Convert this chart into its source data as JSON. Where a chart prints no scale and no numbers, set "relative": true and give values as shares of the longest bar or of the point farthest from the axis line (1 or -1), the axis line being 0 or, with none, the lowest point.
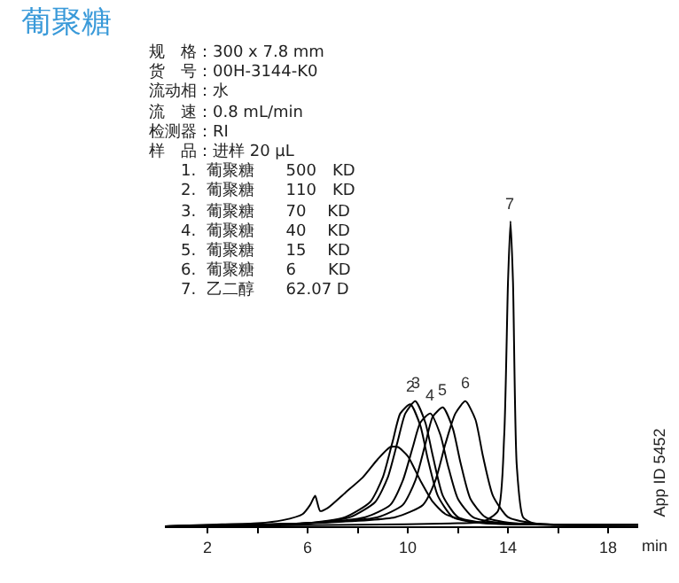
{
  "chart_data": {
    "type": "line",
    "title": "葡聚糖",
    "relative": true,
    "xlabel": "min",
    "xlim": [
      0.3,
      19.2
    ],
    "xticks": [
      2,
      {
        "value": 4,
        "label": null
      },
      6,
      {
        "value": 8,
        "label": null
      },
      10,
      {
        "value": 12,
        "label": null
      },
      14,
      {
        "value": 16,
        "label": null
      },
      18
    ],
    "grid": false,
    "marker": "none",
    "line_style": "solid",
    "series": [
      {
        "color": "#000000",
        "x": [
          0.3,
          2,
          4,
          5,
          5.8,
          6.1,
          6.3,
          6.5,
          6.8,
          7.5,
          8.2,
          8.8,
          9.3,
          9.6,
          10,
          10.5,
          11,
          11.5,
          12.5,
          14,
          16,
          19.2
        ],
        "values": [
          0,
          0.005,
          0.01,
          0.02,
          0.04,
          0.07,
          0.1,
          0.05,
          0.06,
          0.11,
          0.16,
          0.22,
          0.26,
          0.26,
          0.23,
          0.15,
          0.08,
          0.04,
          0.015,
          0.01,
          0.005,
          0.005
        ]
      },
      {
        "color": "#000000",
        "x": [
          0.3,
          6,
          7.5,
          8.5,
          9,
          9.4,
          9.7,
          10.1,
          10.5,
          10.8,
          11.2,
          11.8,
          13,
          16,
          19.2
        ],
        "values": [
          0,
          0.01,
          0.03,
          0.08,
          0.16,
          0.28,
          0.37,
          0.4,
          0.33,
          0.22,
          0.1,
          0.03,
          0.01,
          0.005,
          0.005
        ]
      },
      {
        "color": "#000000",
        "x": [
          0.3,
          6,
          7.7,
          8.7,
          9.2,
          9.6,
          9.9,
          10.3,
          10.7,
          11,
          11.4,
          12,
          13.2,
          16,
          19.2
        ],
        "values": [
          0,
          0.01,
          0.03,
          0.08,
          0.16,
          0.28,
          0.37,
          0.41,
          0.34,
          0.23,
          0.1,
          0.03,
          0.01,
          0.005,
          0.005
        ]
      },
      {
        "color": "#000000",
        "x": [
          0.3,
          6,
          8.3,
          9.3,
          9.8,
          10.2,
          10.5,
          10.9,
          11.3,
          11.6,
          12,
          12.6,
          13.8,
          16,
          19.2
        ],
        "values": [
          0,
          0.01,
          0.03,
          0.07,
          0.15,
          0.26,
          0.34,
          0.37,
          0.3,
          0.2,
          0.09,
          0.03,
          0.01,
          0.005,
          0.005
        ]
      },
      {
        "color": "#000000",
        "x": [
          0.3,
          6,
          8.8,
          9.8,
          10.3,
          10.7,
          11,
          11.4,
          11.8,
          12.1,
          12.5,
          13.1,
          14.2,
          16,
          19.2
        ],
        "values": [
          0,
          0.01,
          0.03,
          0.07,
          0.15,
          0.27,
          0.36,
          0.39,
          0.32,
          0.21,
          0.09,
          0.03,
          0.01,
          0.005,
          0.005
        ]
      },
      {
        "color": "#000000",
        "x": [
          0.3,
          6,
          9.5,
          10.6,
          11.1,
          11.5,
          11.9,
          12.3,
          12.7,
          13,
          13.4,
          14,
          15,
          16,
          19.2
        ],
        "values": [
          0,
          0.01,
          0.03,
          0.07,
          0.15,
          0.27,
          0.37,
          0.41,
          0.35,
          0.23,
          0.1,
          0.03,
          0.01,
          0.005,
          0.005
        ]
      },
      {
        "color": "#000000",
        "x": [
          0.3,
          8,
          12,
          13,
          13.6,
          13.85,
          14,
          14.1,
          14.2,
          14.35,
          14.6,
          15,
          16,
          19.2
        ],
        "values": [
          0,
          0.005,
          0.01,
          0.015,
          0.05,
          0.3,
          0.8,
          1,
          0.8,
          0.2,
          0.03,
          0.01,
          0.005,
          0.005
        ]
      }
    ],
    "annotations": [
      "规　格：300 x 7.8 mm",
      "货　号：00H-3144-K0",
      "流动相：水",
      "流　速：0.8 mL/min",
      "检测器：RI",
      "样　品：进样 20 μL",
      "1.  葡聚糖　　500　KD",
      "2.  葡聚糖　　110　KD",
      "3.  葡聚糖　　70　 KD",
      "4.  葡聚糖　　40　 KD",
      "5.  葡聚糖　　15　 KD",
      "6.  葡聚糖　　6　　KD",
      "7.  乙二醇　　62.07 D",
      "App ID 5452",
      {
        "text": "2",
        "x": 10.1,
        "y": 0.4
      },
      {
        "text": "3",
        "x": 10.3,
        "y": 0.41
      },
      {
        "text": "4",
        "x": 10.9,
        "y": 0.37
      },
      {
        "text": "5",
        "x": 11.4,
        "y": 0.39
      },
      {
        "text": "6",
        "x": 12.3,
        "y": 0.41
      },
      {
        "text": "7",
        "x": 14.1,
        "y": 1
      }
    ]
  }
}
